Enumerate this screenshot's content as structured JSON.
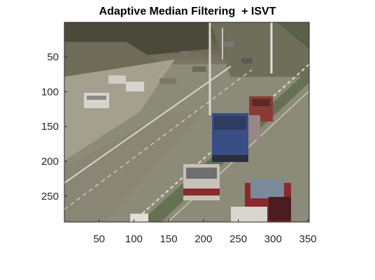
{
  "figure": {
    "title": "Adaptive Median Filtering  + ISVT"
  },
  "image_axes": {
    "x_ticks": [
      "50",
      "100",
      "150",
      "200",
      "250",
      "300",
      "350"
    ],
    "y_ticks": [
      "50",
      "100",
      "150",
      "200",
      "250"
    ],
    "x_range": [
      1,
      352
    ],
    "y_range": [
      1,
      288
    ]
  },
  "scene": {
    "description_icon": "highway-traffic-photo",
    "colors": {
      "road": "#8c8a78",
      "vegetation": "#5e6446",
      "blue_van": "#3a4e86",
      "red_car": "#8a2a2c",
      "white_car": "#d6d4cc"
    }
  }
}
